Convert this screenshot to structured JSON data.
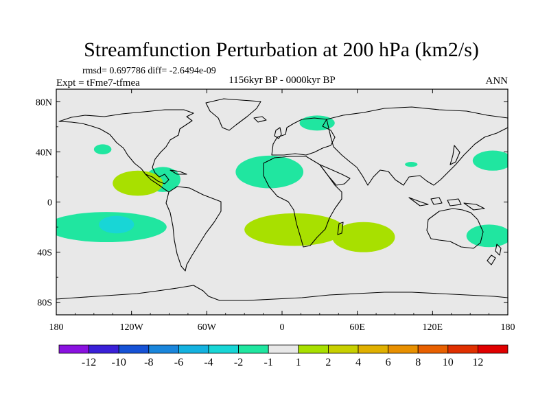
{
  "chart_data": {
    "type": "heatmap",
    "title": "Streamfunction Perturbation at 200 hPa (km2/s)",
    "stats": "rmsd= 0.697786 diff= -2.6494e-09",
    "experiment": "Expt = tFme7-tfmea",
    "period": "1156kyr BP - 0000kyr BP",
    "season": "ANN",
    "x_range": [
      -180,
      180
    ],
    "y_range": [
      -90,
      90
    ],
    "x_ticks": [
      {
        "value": -180,
        "label": "180"
      },
      {
        "value": -120,
        "label": "120W"
      },
      {
        "value": -60,
        "label": "60W"
      },
      {
        "value": 0,
        "label": "0"
      },
      {
        "value": 60,
        "label": "60E"
      },
      {
        "value": 120,
        "label": "120E"
      },
      {
        "value": 180,
        "label": "180"
      }
    ],
    "y_ticks": [
      {
        "value": 80,
        "label": "80N"
      },
      {
        "value": 40,
        "label": "40N"
      },
      {
        "value": 0,
        "label": "0"
      },
      {
        "value": -40,
        "label": "40S"
      },
      {
        "value": -80,
        "label": "80S"
      }
    ],
    "colorbar": {
      "colors": [
        "#8a12e0",
        "#3a20d8",
        "#1652d6",
        "#1a86dc",
        "#14b2e0",
        "#18d6d6",
        "#20e6a0",
        "#e8e8e8",
        "#a8e000",
        "#c8d000",
        "#e0b000",
        "#e89000",
        "#e86000",
        "#e03000",
        "#e00000"
      ],
      "labels": [
        "-12",
        "-10",
        "-8",
        "-6",
        "-4",
        "-2",
        "-1",
        "1",
        "2",
        "4",
        "6",
        "8",
        "10",
        "12"
      ]
    },
    "background_color": "#e8e8e8",
    "anomalies": [
      {
        "name": "north-pacific-small-positive",
        "lon": -143,
        "lat": 42,
        "rlon": 7,
        "rlat": 4,
        "color": "#20e6a0"
      },
      {
        "name": "caribbean-negative",
        "lon": -95,
        "lat": 18,
        "rlon": 14,
        "rlat": 10,
        "color": "#20e6a0"
      },
      {
        "name": "gulf-mexico-positive",
        "lon": -115,
        "lat": 15,
        "rlon": 20,
        "rlat": 10,
        "color": "#a8e000"
      },
      {
        "name": "north-atlantic-negative",
        "lon": -10,
        "lat": 24,
        "rlon": 27,
        "rlat": 13,
        "color": "#20e6a0"
      },
      {
        "name": "scandinavia-negative",
        "lon": 28,
        "lat": 63,
        "rlon": 14,
        "rlat": 6,
        "color": "#20e6a0"
      },
      {
        "name": "central-asia-negative",
        "lon": 103,
        "lat": 30,
        "rlon": 5,
        "rlat": 2,
        "color": "#20e6a0"
      },
      {
        "name": "west-pacific-negative",
        "lon": 168,
        "lat": 33,
        "rlon": 16,
        "rlat": 8,
        "color": "#20e6a0"
      },
      {
        "name": "south-pacific-negative",
        "lon": -140,
        "lat": -20,
        "rlon": 48,
        "rlat": 12,
        "color": "#20e6a0"
      },
      {
        "name": "south-pacific-core",
        "lon": -132,
        "lat": -18,
        "rlon": 14,
        "rlat": 7,
        "color": "#18d6d6"
      },
      {
        "name": "south-atlantic-positive",
        "lon": 10,
        "lat": -22,
        "rlon": 40,
        "rlat": 13,
        "color": "#a8e000"
      },
      {
        "name": "south-indian-positive",
        "lon": 65,
        "lat": -28,
        "rlon": 25,
        "rlat": 12,
        "color": "#a8e000"
      },
      {
        "name": "australia-east-negative",
        "lon": 165,
        "lat": -27,
        "rlon": 18,
        "rlat": 9,
        "color": "#20e6a0"
      }
    ]
  }
}
